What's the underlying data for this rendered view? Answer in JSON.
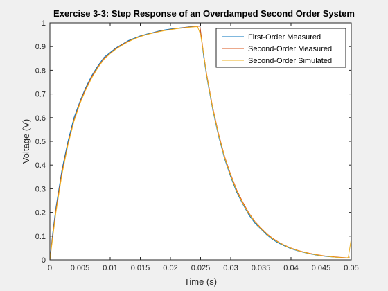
{
  "chart_data": {
    "type": "line",
    "title": "Exercise 3-3: Step Response of an Overdamped Second Order System",
    "xlabel": "Time (s)",
    "ylabel": "Voltage (V)",
    "xlim": [
      0,
      0.05
    ],
    "ylim": [
      0,
      1
    ],
    "xticks": [
      0,
      0.005,
      0.01,
      0.015,
      0.02,
      0.025,
      0.03,
      0.035,
      0.04,
      0.045,
      0.05
    ],
    "xtick_labels": [
      "0",
      "0.005",
      "0.01",
      "0.015",
      "0.02",
      "0.025",
      "0.03",
      "0.035",
      "0.04",
      "0.045",
      "0.05"
    ],
    "yticks": [
      0,
      0.1,
      0.2,
      0.3,
      0.4,
      0.5,
      0.6,
      0.7,
      0.8,
      0.9,
      1
    ],
    "ytick_labels": [
      "0",
      "0.1",
      "0.2",
      "0.3",
      "0.4",
      "0.5",
      "0.6",
      "0.7",
      "0.8",
      "0.9",
      "1"
    ],
    "grid": false,
    "legend_position": "top-right",
    "series": [
      {
        "name": "First-Order Measured",
        "color": "#0072BD",
        "x": [
          0,
          0.0005,
          0.001,
          0.0015,
          0.002,
          0.003,
          0.004,
          0.005,
          0.006,
          0.007,
          0.008,
          0.009,
          0.01,
          0.011,
          0.012,
          0.013,
          0.014,
          0.015,
          0.016,
          0.017,
          0.018,
          0.019,
          0.02,
          0.021,
          0.022,
          0.023,
          0.024,
          0.0248,
          0.0249,
          0.0255,
          0.026,
          0.027,
          0.028,
          0.029,
          0.03,
          0.031,
          0.032,
          0.033,
          0.034,
          0.035,
          0.036,
          0.037,
          0.038,
          0.039,
          0.04,
          0.041,
          0.042,
          0.043,
          0.044,
          0.045,
          0.046,
          0.047,
          0.048,
          0.049,
          0.0495,
          0.0497
        ],
        "y": [
          0,
          0.12,
          0.22,
          0.3,
          0.38,
          0.5,
          0.6,
          0.67,
          0.73,
          0.78,
          0.82,
          0.855,
          0.875,
          0.895,
          0.91,
          0.925,
          0.935,
          0.945,
          0.952,
          0.958,
          0.965,
          0.97,
          0.974,
          0.977,
          0.98,
          0.983,
          0.985,
          0.987,
          0.985,
          0.86,
          0.775,
          0.635,
          0.52,
          0.425,
          0.35,
          0.285,
          0.235,
          0.19,
          0.155,
          0.13,
          0.105,
          0.085,
          0.07,
          0.058,
          0.047,
          0.039,
          0.032,
          0.026,
          0.021,
          0.017,
          0.014,
          0.012,
          0.01,
          0.008,
          0.008,
          0.012
        ]
      },
      {
        "name": "Second-Order Measured",
        "color": "#D95319",
        "x": [
          0,
          0.0005,
          0.001,
          0.0015,
          0.002,
          0.003,
          0.004,
          0.005,
          0.006,
          0.007,
          0.008,
          0.009,
          0.01,
          0.011,
          0.012,
          0.013,
          0.014,
          0.015,
          0.016,
          0.017,
          0.018,
          0.019,
          0.02,
          0.021,
          0.022,
          0.023,
          0.024,
          0.0248,
          0.0249,
          0.0255,
          0.026,
          0.027,
          0.028,
          0.029,
          0.03,
          0.031,
          0.032,
          0.033,
          0.034,
          0.035,
          0.036,
          0.037,
          0.038,
          0.039,
          0.04,
          0.041,
          0.042,
          0.043,
          0.044,
          0.045,
          0.046,
          0.047,
          0.048,
          0.049,
          0.0495,
          0.0497
        ],
        "y": [
          0,
          0.11,
          0.21,
          0.29,
          0.37,
          0.49,
          0.59,
          0.665,
          0.725,
          0.775,
          0.815,
          0.85,
          0.872,
          0.892,
          0.908,
          0.922,
          0.933,
          0.943,
          0.95,
          0.957,
          0.963,
          0.968,
          0.972,
          0.976,
          0.979,
          0.982,
          0.984,
          0.986,
          0.984,
          0.87,
          0.785,
          0.645,
          0.53,
          0.435,
          0.36,
          0.295,
          0.243,
          0.198,
          0.162,
          0.135,
          0.11,
          0.09,
          0.074,
          0.061,
          0.05,
          0.041,
          0.034,
          0.028,
          0.023,
          0.019,
          0.015,
          0.013,
          0.011,
          0.009,
          0.008,
          0.012
        ]
      },
      {
        "name": "Second-Order Simulated",
        "color": "#EDB120",
        "x": [
          0,
          0.0005,
          0.001,
          0.0015,
          0.002,
          0.003,
          0.004,
          0.005,
          0.006,
          0.007,
          0.008,
          0.009,
          0.01,
          0.011,
          0.012,
          0.013,
          0.014,
          0.015,
          0.016,
          0.017,
          0.018,
          0.019,
          0.02,
          0.021,
          0.022,
          0.023,
          0.024,
          0.0245,
          0.025,
          0.0255,
          0.026,
          0.027,
          0.028,
          0.029,
          0.03,
          0.031,
          0.032,
          0.033,
          0.034,
          0.035,
          0.036,
          0.037,
          0.038,
          0.039,
          0.04,
          0.041,
          0.042,
          0.043,
          0.044,
          0.045,
          0.046,
          0.047,
          0.048,
          0.049,
          0.0495,
          0.05
        ],
        "y": [
          0,
          0.1,
          0.2,
          0.28,
          0.36,
          0.485,
          0.585,
          0.66,
          0.72,
          0.77,
          0.812,
          0.847,
          0.87,
          0.89,
          0.906,
          0.92,
          0.932,
          0.942,
          0.95,
          0.956,
          0.962,
          0.967,
          0.971,
          0.975,
          0.978,
          0.981,
          0.983,
          0.984,
          0.95,
          0.87,
          0.78,
          0.64,
          0.525,
          0.43,
          0.355,
          0.29,
          0.238,
          0.195,
          0.16,
          0.132,
          0.108,
          0.088,
          0.073,
          0.06,
          0.049,
          0.04,
          0.033,
          0.027,
          0.022,
          0.018,
          0.015,
          0.012,
          0.01,
          0.008,
          0.01,
          0.09
        ]
      }
    ]
  }
}
